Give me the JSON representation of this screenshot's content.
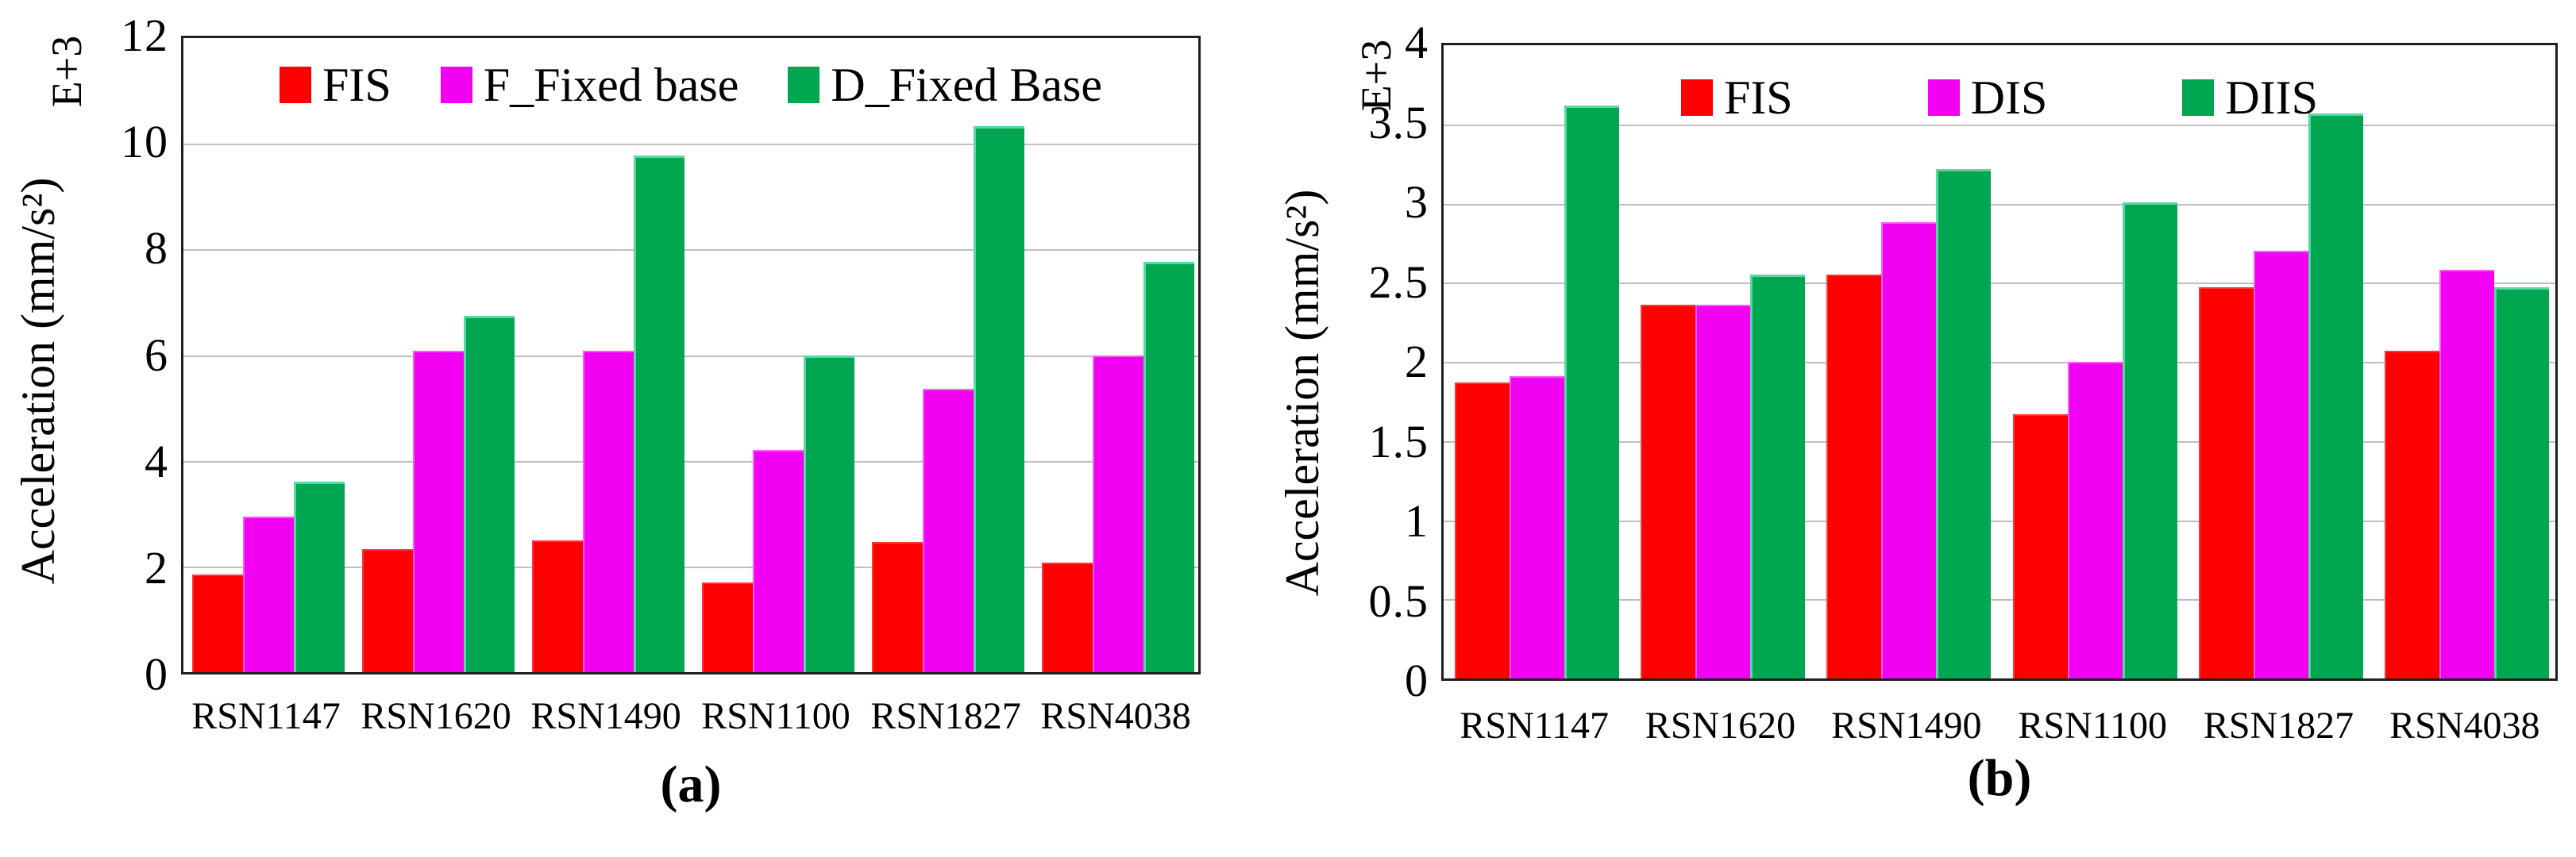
{
  "figure": {
    "background": "#ffffff",
    "axis_border_color": "#1f1f1f",
    "gridline_color": "#bfbfbf"
  },
  "chart_data": [
    {
      "id": "a",
      "type": "bar",
      "caption": "(a)",
      "y_multiplier": "E+3",
      "ylabel": "Acceleration (mm/s²)",
      "xlabel": "",
      "ylim": [
        0,
        12
      ],
      "yticks": [
        0,
        2,
        4,
        6,
        8,
        10,
        12
      ],
      "grid": true,
      "legend_position": "top-center",
      "categories": [
        "RSN1147",
        "RSN1620",
        "RSN1490",
        "RSN1100",
        "RSN1827",
        "RSN4038"
      ],
      "series": [
        {
          "name": "FIS",
          "color": "#fe0000",
          "values": [
            1.85,
            2.33,
            2.5,
            1.7,
            2.46,
            2.07
          ]
        },
        {
          "name": "F_Fixed base",
          "color": "#f200f2",
          "values": [
            2.95,
            6.08,
            6.09,
            4.2,
            5.36,
            6.0
          ]
        },
        {
          "name": "D_Fixed Base",
          "color": "#00a650",
          "values": [
            3.6,
            6.74,
            9.78,
            6.0,
            10.33,
            7.76
          ]
        }
      ]
    },
    {
      "id": "b",
      "type": "bar",
      "caption": "(b)",
      "y_multiplier": "E+3",
      "ylabel": "Acceleration (mm/s²)",
      "xlabel": "",
      "ylim": [
        0,
        4
      ],
      "yticks": [
        0,
        0.5,
        1,
        1.5,
        2,
        2.5,
        3,
        3.5,
        4
      ],
      "grid": true,
      "legend_position": "top-center",
      "categories": [
        "RSN1147",
        "RSN1620",
        "RSN1490",
        "RSN1100",
        "RSN1827",
        "RSN4038"
      ],
      "series": [
        {
          "name": "FIS",
          "color": "#fe0000",
          "values": [
            1.87,
            2.36,
            2.55,
            1.67,
            2.47,
            2.07
          ]
        },
        {
          "name": "DIS",
          "color": "#f200f2",
          "values": [
            1.91,
            2.36,
            2.88,
            2.0,
            2.7,
            2.58
          ]
        },
        {
          "name": "DIIS",
          "color": "#00a650",
          "values": [
            3.62,
            2.55,
            3.22,
            3.01,
            3.57,
            2.47
          ]
        }
      ]
    }
  ]
}
